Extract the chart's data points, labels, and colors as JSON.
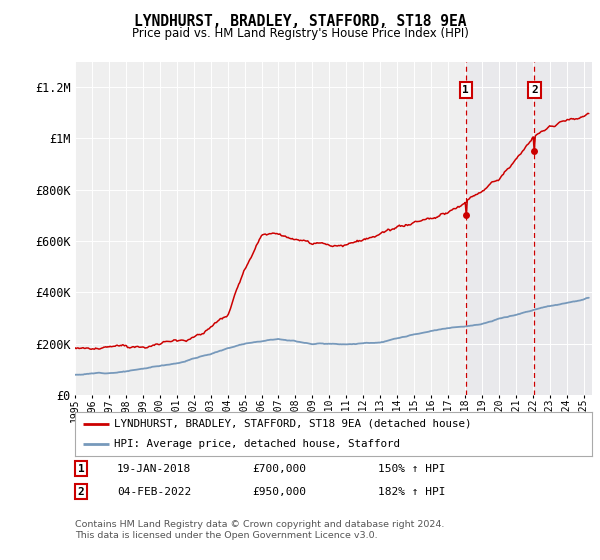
{
  "title": "LYNDHURST, BRADLEY, STAFFORD, ST18 9EA",
  "subtitle": "Price paid vs. HM Land Registry's House Price Index (HPI)",
  "ylim": [
    0,
    1300000
  ],
  "yticks": [
    0,
    200000,
    400000,
    600000,
    800000,
    1000000,
    1200000
  ],
  "ytick_labels": [
    "£0",
    "£200K",
    "£400K",
    "£600K",
    "£800K",
    "£1M",
    "£1.2M"
  ],
  "background_color": "#ffffff",
  "plot_bg_color": "#efefef",
  "grid_color": "#ffffff",
  "legend_entries": [
    "LYNDHURST, BRADLEY, STAFFORD, ST18 9EA (detached house)",
    "HPI: Average price, detached house, Stafford"
  ],
  "legend_colors": [
    "#cc0000",
    "#7799bb"
  ],
  "marker1_x": 2018.05,
  "marker1_date": "19-JAN-2018",
  "marker1_price": "£700,000",
  "marker1_hpi": "150% ↑ HPI",
  "marker1_value": 700000,
  "marker2_x": 2022.09,
  "marker2_date": "04-FEB-2022",
  "marker2_price": "£950,000",
  "marker2_hpi": "182% ↑ HPI",
  "marker2_value": 950000,
  "footer": "Contains HM Land Registry data © Crown copyright and database right 2024.\nThis data is licensed under the Open Government Licence v3.0.",
  "xmin": 1995,
  "xmax": 2025.5
}
